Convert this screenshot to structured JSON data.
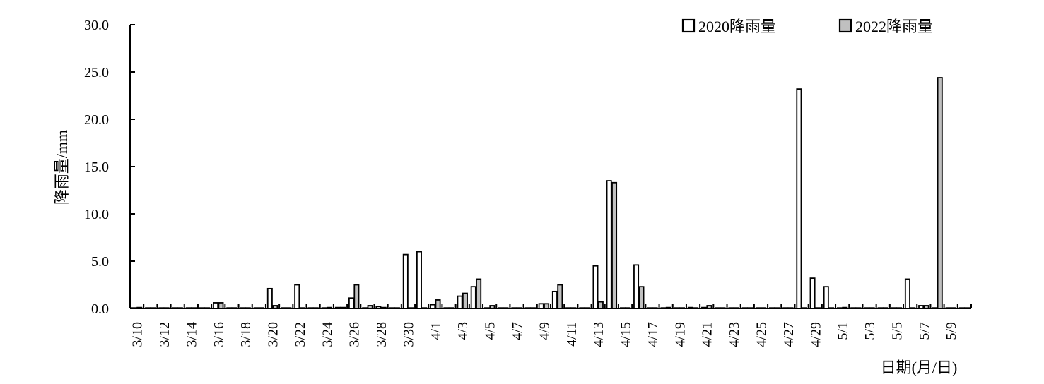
{
  "chart_data": {
    "type": "bar",
    "ylabel": "降雨量/mm",
    "xlabel": "日期(月/日)",
    "ylim": [
      0,
      30
    ],
    "yticks": [
      "0.0",
      "5.0",
      "10.0",
      "15.0",
      "20.0",
      "25.0",
      "30.0"
    ],
    "legend_position": "top-right",
    "categories": [
      "3/10",
      "3/11",
      "3/12",
      "3/13",
      "3/14",
      "3/15",
      "3/16",
      "3/17",
      "3/18",
      "3/19",
      "3/20",
      "3/21",
      "3/22",
      "3/23",
      "3/24",
      "3/25",
      "3/26",
      "3/27",
      "3/28",
      "3/29",
      "3/30",
      "3/31",
      "4/1",
      "4/2",
      "4/3",
      "4/4",
      "4/5",
      "4/6",
      "4/7",
      "4/8",
      "4/9",
      "4/10",
      "4/11",
      "4/12",
      "4/13",
      "4/14",
      "4/15",
      "4/16",
      "4/17",
      "4/18",
      "4/19",
      "4/20",
      "4/21",
      "4/22",
      "4/23",
      "4/24",
      "4/25",
      "4/26",
      "4/27",
      "4/28",
      "4/29",
      "4/30",
      "5/1",
      "5/2",
      "5/3",
      "5/4",
      "5/5",
      "5/6",
      "5/7",
      "5/8",
      "5/9",
      "5/10"
    ],
    "tick_labels": [
      "3/10",
      "",
      "3/12",
      "",
      "3/14",
      "",
      "3/16",
      "",
      "3/18",
      "",
      "3/20",
      "",
      "3/22",
      "",
      "3/24",
      "",
      "3/26",
      "",
      "3/28",
      "",
      "3/30",
      "",
      "4/1",
      "",
      "4/3",
      "",
      "4/5",
      "",
      "4/7",
      "",
      "4/9",
      "",
      "4/11",
      "",
      "4/13",
      "",
      "4/15",
      "",
      "4/17",
      "",
      "4/19",
      "",
      "4/21",
      "",
      "4/23",
      "",
      "4/25",
      "",
      "4/27",
      "",
      "4/29",
      "",
      "5/1",
      "",
      "5/3",
      "",
      "5/5",
      "",
      "5/7",
      "",
      "5/9",
      ""
    ],
    "series": [
      {
        "name": "2020降雨量",
        "color": "#ffffff",
        "values": [
          0,
          0,
          0,
          0,
          0,
          0,
          0.6,
          0,
          0,
          0,
          2.1,
          0,
          2.5,
          0,
          0,
          0.1,
          1.1,
          0,
          0.2,
          0,
          5.7,
          6.0,
          0.4,
          0,
          1.3,
          2.3,
          0,
          0,
          0,
          0,
          0.5,
          1.8,
          0,
          0,
          4.5,
          13.5,
          0,
          4.6,
          0,
          0,
          0,
          0.1,
          0.1,
          0,
          0,
          0,
          0,
          0,
          0,
          23.2,
          3.2,
          2.3,
          0,
          0,
          0,
          0,
          0,
          3.1,
          0.3,
          0,
          0,
          0
        ]
      },
      {
        "name": "2022降雨量",
        "color": "#c0c0c0",
        "values": [
          0.1,
          0,
          0,
          0,
          0,
          0,
          0.6,
          0,
          0,
          0,
          0.3,
          0,
          0,
          0,
          0.1,
          0.1,
          2.5,
          0.3,
          0.1,
          0,
          0,
          0,
          0.9,
          0,
          1.6,
          3.1,
          0.3,
          0,
          0,
          0,
          0.5,
          2.5,
          0,
          0,
          0.7,
          13.3,
          0,
          2.3,
          0,
          0.1,
          0,
          0,
          0.3,
          0,
          0,
          0,
          0,
          0,
          0,
          0,
          0,
          0,
          0.1,
          0,
          0,
          0,
          0,
          0,
          0.3,
          24.4,
          0,
          0
        ]
      }
    ]
  }
}
